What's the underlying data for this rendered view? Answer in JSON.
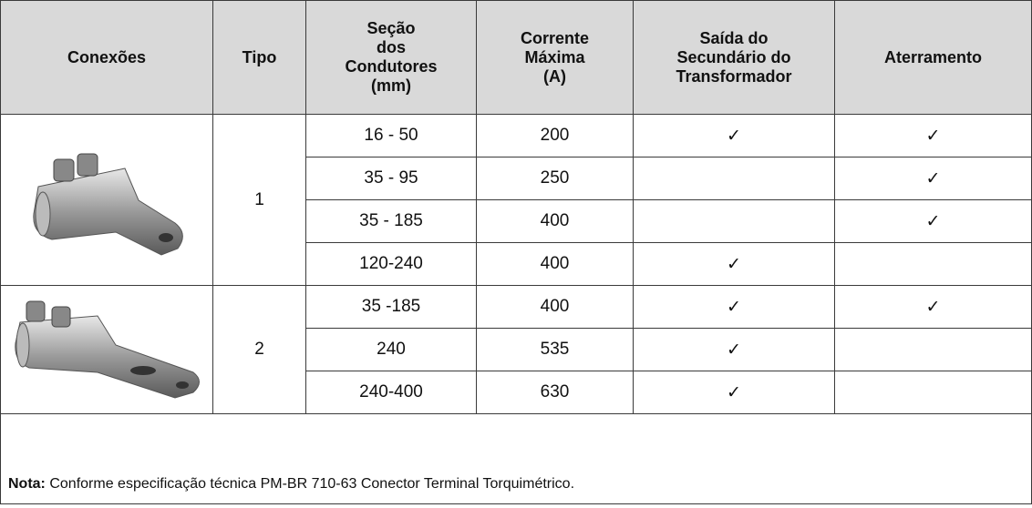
{
  "table": {
    "header": [
      [
        "Conexões"
      ],
      [
        "Tipo"
      ],
      [
        "Seção",
        "dos",
        "Condutores",
        "(mm)"
      ],
      [
        "Corrente",
        "Máxima",
        "(A)"
      ],
      [
        "Saída do",
        "Secundário do",
        "Transformador"
      ],
      [
        "Aterramento"
      ]
    ],
    "groups": [
      {
        "type": "1",
        "rows": [
          {
            "section": "16 - 50",
            "current": "200",
            "saida": "✓",
            "aterramento": "✓"
          },
          {
            "section": "35 - 95",
            "current": "250",
            "saida": null,
            "aterramento": "✓"
          },
          {
            "section": "35 - 185",
            "current": "400",
            "saida": null,
            "aterramento": "✓"
          },
          {
            "section": "120-240",
            "current": "400",
            "saida": "✓",
            "aterramento": null
          }
        ]
      },
      {
        "type": "2",
        "rows": [
          {
            "section": "35 -185",
            "current": "400",
            "saida": "✓",
            "aterramento": "✓"
          },
          {
            "section": "240",
            "current": "535",
            "saida": "✓",
            "aterramento": null
          },
          {
            "section": "240-400",
            "current": "630",
            "saida": "✓",
            "aterramento": null
          }
        ]
      }
    ],
    "note": {
      "label": "Nota:",
      "text": "Conforme especificação técnica PM-BR 710-63 Conector Terminal Torquimétrico."
    }
  }
}
